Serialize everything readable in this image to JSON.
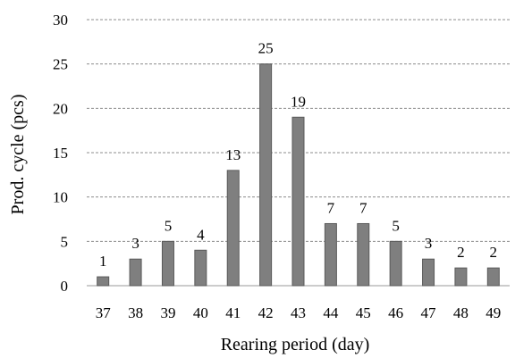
{
  "chart_data": {
    "type": "bar",
    "title": "",
    "xlabel": "Rearing period (day)",
    "ylabel": "Prod. cycle (pcs)",
    "categories": [
      "37",
      "38",
      "39",
      "40",
      "41",
      "42",
      "43",
      "44",
      "45",
      "46",
      "47",
      "48",
      "49"
    ],
    "values": [
      1,
      3,
      5,
      4,
      13,
      25,
      19,
      7,
      7,
      5,
      3,
      2,
      2
    ],
    "data_labels": [
      "1",
      "3",
      "5",
      "4",
      "13",
      "25",
      "19",
      "7",
      "7",
      "5",
      "3",
      "2",
      "2"
    ],
    "ylim": [
      0,
      30
    ],
    "yticks": [
      0,
      5,
      10,
      15,
      20,
      25,
      30
    ],
    "grid": "horizontal-dashed",
    "legend": "none",
    "bar_color": "#7f7f7f",
    "bar_edge_color": "#5a5a5a",
    "grid_color": "#8c8c8c"
  }
}
